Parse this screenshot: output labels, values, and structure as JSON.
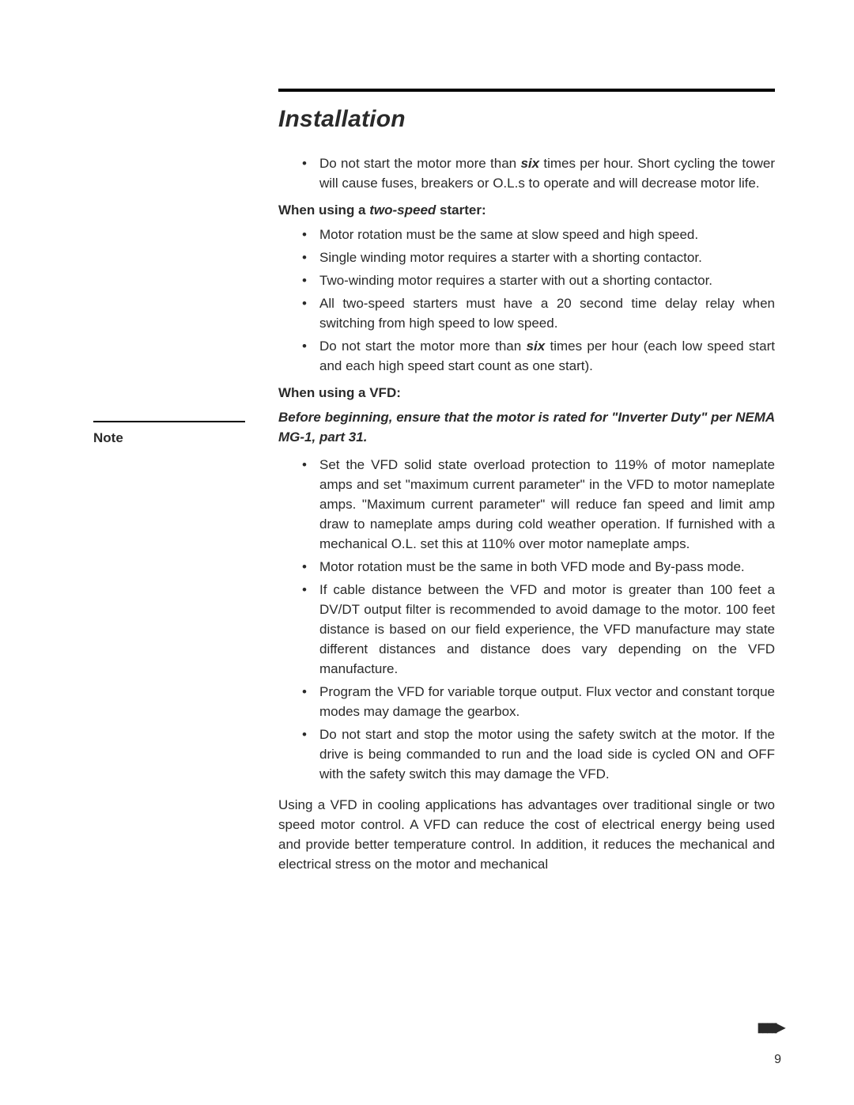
{
  "title": "Installation",
  "intro_bullet_pre": "Do not start the motor more than ",
  "intro_bullet_em": "six",
  "intro_bullet_post": " times per hour. Short cycling the tower will cause fuses, breakers or O.L.s to operate and will decrease motor life.",
  "twospeed_heading_pre": "When using a ",
  "twospeed_heading_em": "two-speed",
  "twospeed_heading_post": " starter:",
  "twospeed": {
    "b1": "Motor rotation must be the same at slow speed and high speed.",
    "b2": "Single winding motor requires a starter with a shorting contactor.",
    "b3": "Two-winding motor requires a starter with out a shorting contactor.",
    "b4": "All two-speed starters must have a 20 second time delay relay when switching from high speed to low speed.",
    "b5_pre": "Do not start the motor more than ",
    "b5_em": "six",
    "b5_post": " times per hour (each low speed start and each high speed start count as one start)."
  },
  "vfd_heading": "When using a VFD:",
  "note_label": "Note",
  "note_text": "Before beginning, ensure that the motor is rated for \"Inverter Duty\" per NEMA MG-1, part 31.",
  "vfd": {
    "b1": "Set the VFD solid state overload protection to 119% of motor nameplate amps and set \"maximum current parameter\" in the VFD to motor nameplate amps. \"Maximum current parameter\" will reduce fan speed and limit amp draw to nameplate amps during cold weather operation. If furnished with a mechanical O.L. set this at 110% over motor nameplate amps.",
    "b2": "Motor rotation must be the same in both VFD mode and By-pass mode.",
    "b3": "If cable distance between the VFD and motor is greater than 100 feet a DV/DT output filter is recommended to avoid damage to the motor. 100 feet distance is based on our field experience, the VFD manufacture may state different distances and distance does vary depending on the VFD manufacture.",
    "b4": "Program the VFD for variable torque output. Flux vector and constant torque modes may damage the gearbox.",
    "b5": "Do not start and stop the motor using the safety switch at the motor. If the drive is being commanded to run and the load side is cycled ON and OFF with the safety switch this may damage the VFD."
  },
  "closing_para": "Using a VFD in cooling applications has advantages over traditional single or two speed motor control. A VFD can reduce the cost of electrical energy being used and provide better temperature control. In addition, it reduces the mechanical and electrical stress on the motor and mechanical",
  "continue_glyph": "▮▮▮▮▶",
  "page_number": "9"
}
